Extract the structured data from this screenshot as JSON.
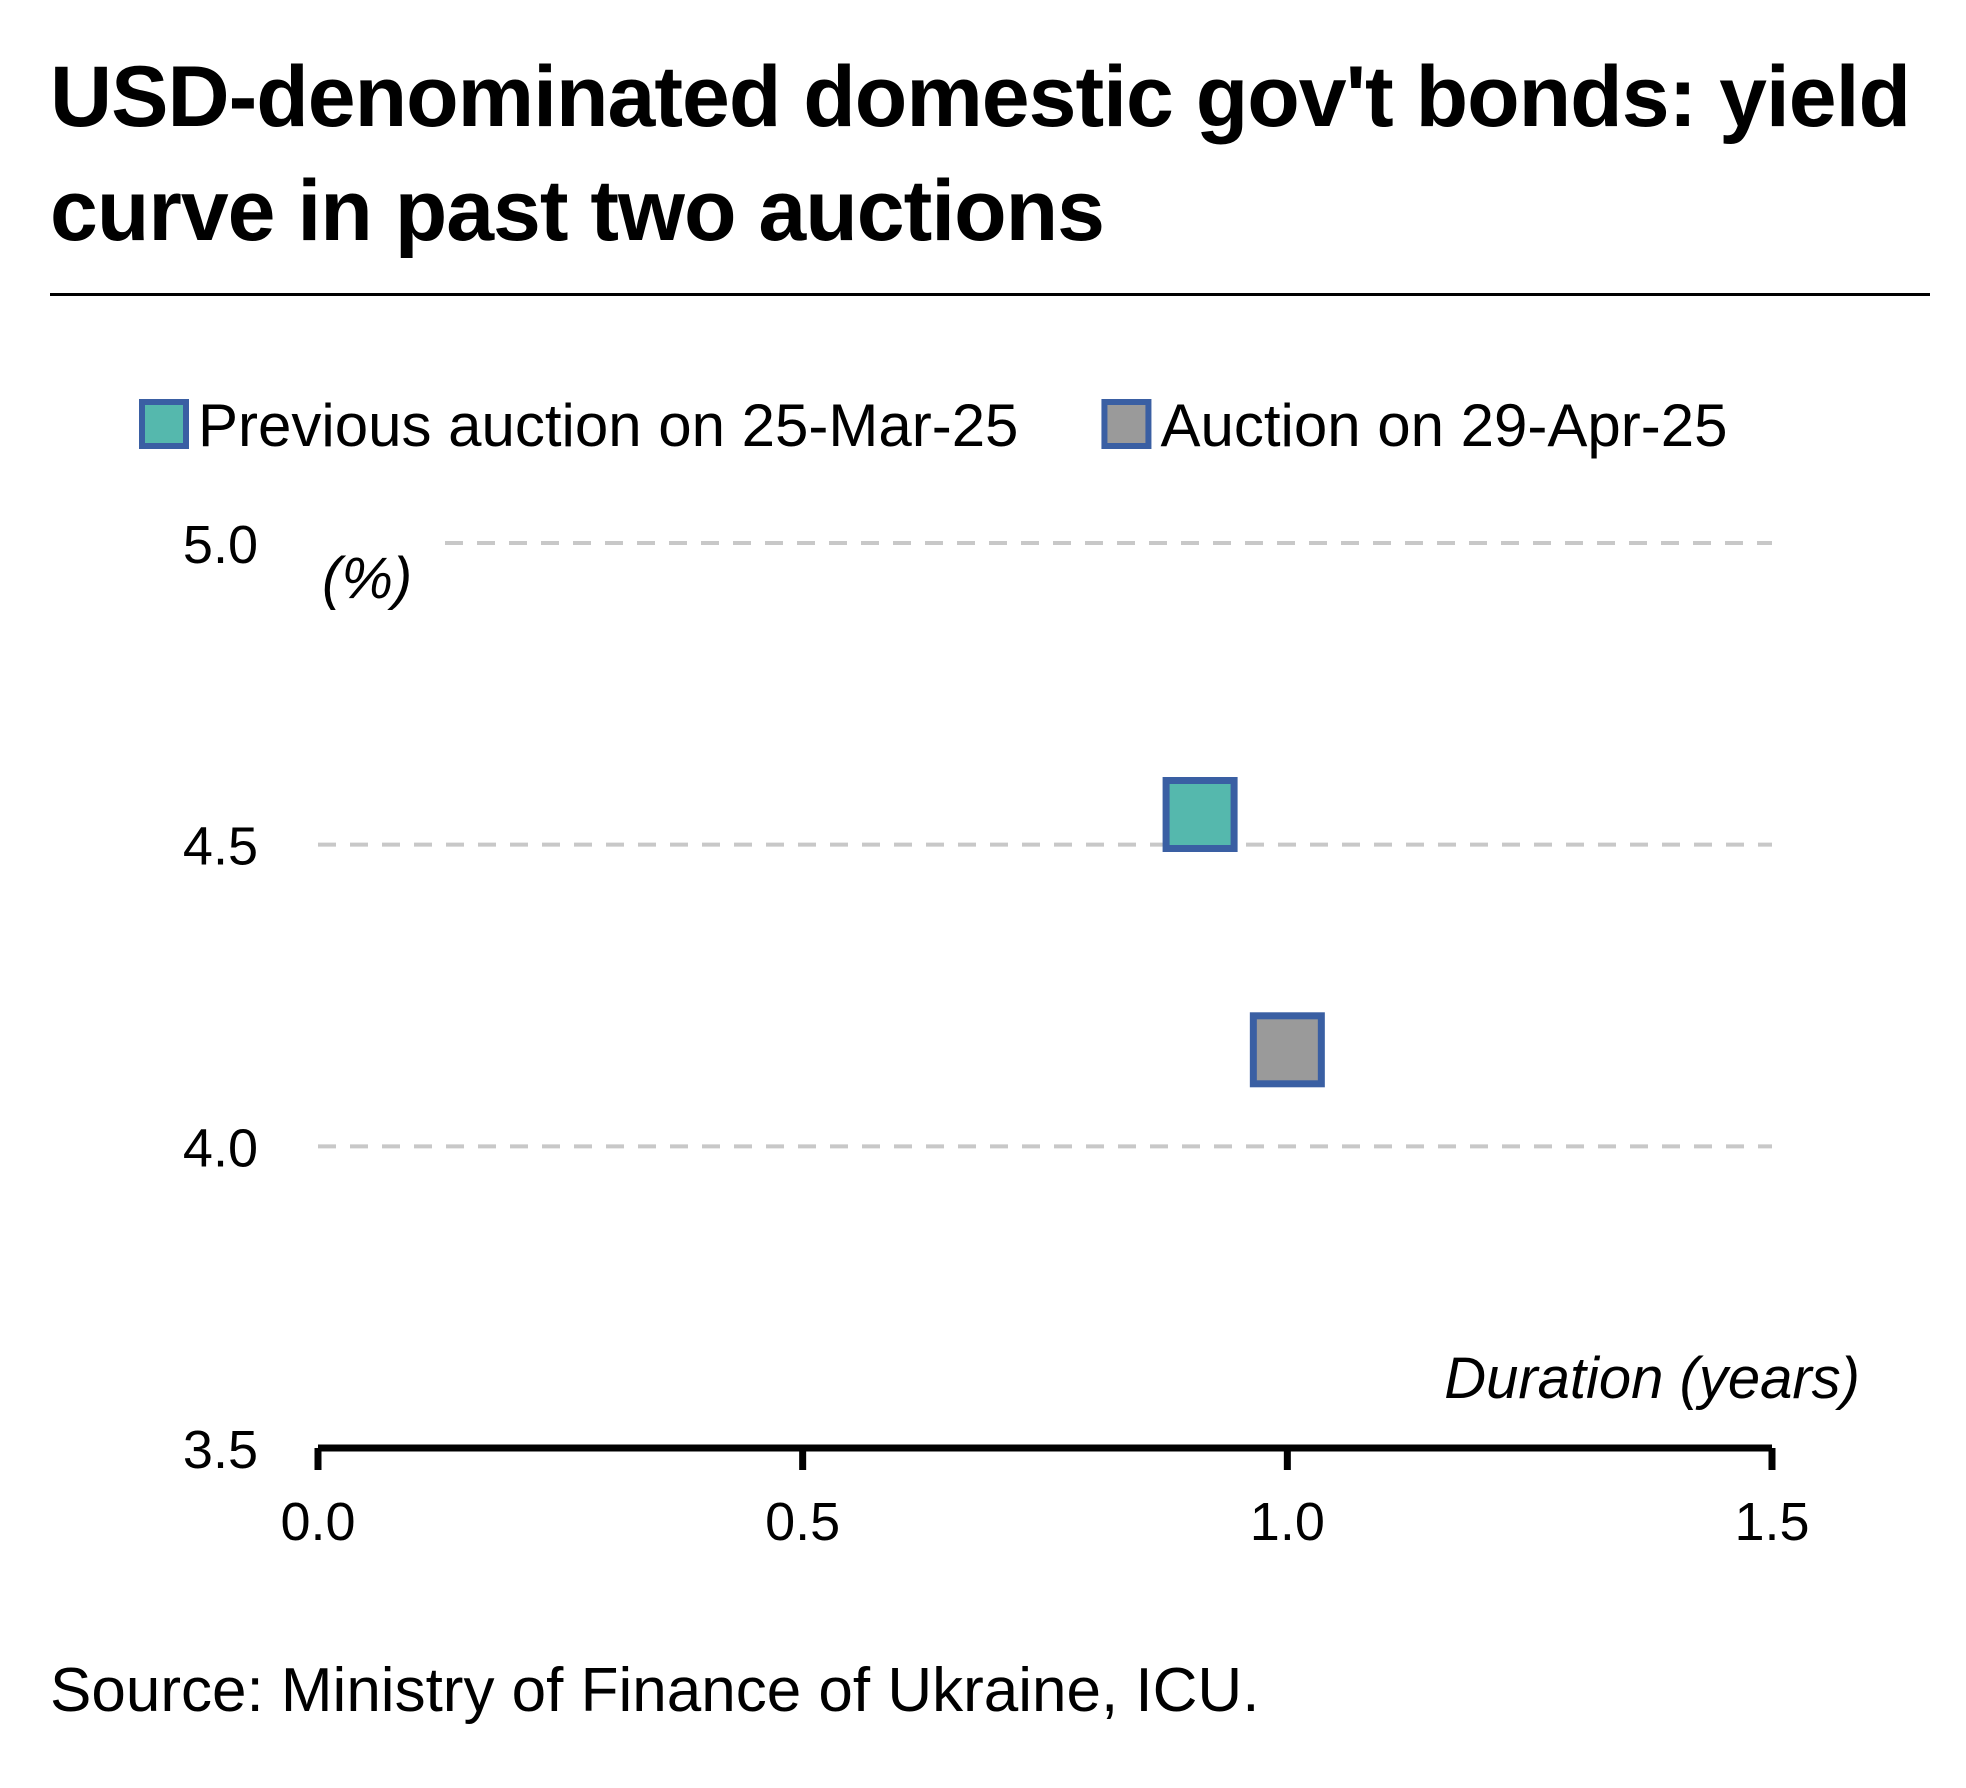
{
  "chart_data": {
    "type": "scatter",
    "title": "USD-denominated domestic gov't bonds: yield curve in past two auctions",
    "ylabel": "(%)",
    "xlabel": "Duration (years)",
    "xlim": [
      0,
      1.5
    ],
    "ylim": [
      3.5,
      5.0
    ],
    "x_ticks": [
      "0.0",
      "0.5",
      "1.0",
      "1.5"
    ],
    "y_ticks": [
      "3.5",
      "4.0",
      "4.5",
      "5.0"
    ],
    "grid": "horizontal dashed",
    "legend_position": "top",
    "series": [
      {
        "name": "Previous auction on 25-Mar-25",
        "color": "#55b8ad",
        "edge_color": "#3a5fa3",
        "marker": "square",
        "points": [
          {
            "x": 0.91,
            "y": 4.55
          }
        ]
      },
      {
        "name": "Auction on 29-Apr-25",
        "color": "#9a9a9a",
        "edge_color": "#3a5fa3",
        "marker": "square",
        "points": [
          {
            "x": 1.0,
            "y": 4.16
          }
        ]
      }
    ],
    "source": "Source: Ministry of Finance of Ukraine, ICU."
  }
}
